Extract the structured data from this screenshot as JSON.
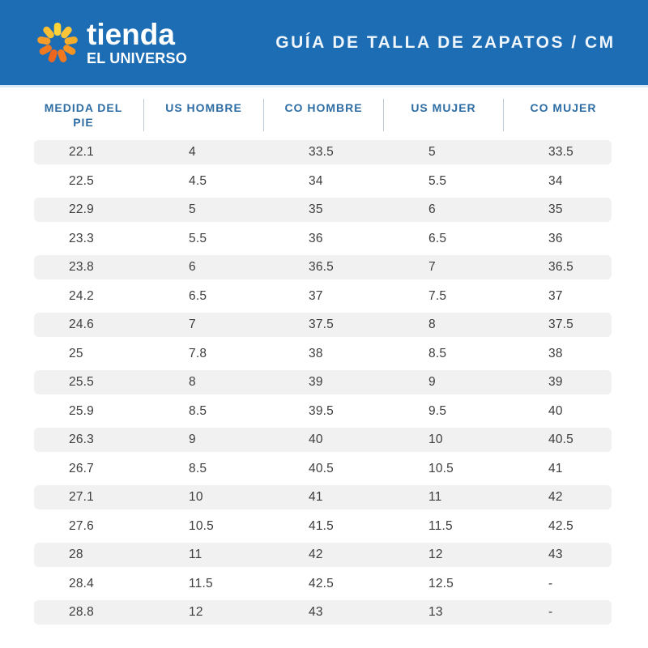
{
  "header": {
    "title": "GUÍA DE TALLA DE ZAPATOS / CM",
    "background_color": "#1d6db5"
  },
  "brand": {
    "name_line1": "tienda",
    "name_line2": "EL UNIVERSO",
    "icon": "sunburst-icon",
    "petal_colors": [
      "#FFD43B",
      "#FFC53A",
      "#F9AE2B",
      "#F79320",
      "#F0791F",
      "#EC661E",
      "#EF7A22",
      "#F59C2A",
      "#FCBE33"
    ]
  },
  "colors": {
    "band_blue": "#1d6db5",
    "band_border": "#d8e8f6",
    "header_text_blue": "#2e6da4",
    "divider": "#b9c9d8",
    "stripe_gray": "#f1f1f1",
    "cell_text": "#3d3d3d"
  },
  "chart_data": {
    "type": "table",
    "title": "GUÍA DE TALLA DE ZAPATOS / CM",
    "units": "cm",
    "striped": true,
    "columns": [
      "MEDIDA DEL PIE",
      "US HOMBRE",
      "CO HOMBRE",
      "US MUJER",
      "CO MUJER"
    ],
    "rows": [
      [
        "22.1",
        "4",
        "33.5",
        "5",
        "33.5"
      ],
      [
        "22.5",
        "4.5",
        "34",
        "5.5",
        "34"
      ],
      [
        "22.9",
        "5",
        "35",
        "6",
        "35"
      ],
      [
        "23.3",
        "5.5",
        "36",
        "6.5",
        "36"
      ],
      [
        "23.8",
        "6",
        "36.5",
        "7",
        "36.5"
      ],
      [
        "24.2",
        "6.5",
        "37",
        "7.5",
        "37"
      ],
      [
        "24.6",
        "7",
        "37.5",
        "8",
        "37.5"
      ],
      [
        "25",
        "7.8",
        "38",
        "8.5",
        "38"
      ],
      [
        "25.5",
        "8",
        "39",
        "9",
        "39"
      ],
      [
        "25.9",
        "8.5",
        "39.5",
        "9.5",
        "40"
      ],
      [
        "26.3",
        "9",
        "40",
        "10",
        "40.5"
      ],
      [
        "26.7",
        "8.5",
        "40.5",
        "10.5",
        "41"
      ],
      [
        "27.1",
        "10",
        "41",
        "11",
        "42"
      ],
      [
        "27.6",
        "10.5",
        "41.5",
        "11.5",
        "42.5"
      ],
      [
        "28",
        "11",
        "42",
        "12",
        "43"
      ],
      [
        "28.4",
        "11.5",
        "42.5",
        "12.5",
        "-"
      ],
      [
        "28.8",
        "12",
        "43",
        "13",
        "-"
      ]
    ]
  }
}
